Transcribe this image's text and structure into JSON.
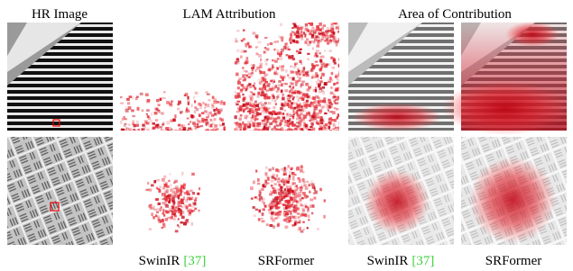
{
  "headers": {
    "hr": "HR Image",
    "lam": "LAM Attribution",
    "area": "Area of Contribution"
  },
  "captions": [
    {
      "method": "SwinIR",
      "citation": "[37]"
    },
    {
      "method": "SRFormer"
    },
    {
      "method": "SwinIR",
      "citation": "[37]"
    },
    {
      "method": "SRFormer"
    }
  ]
}
